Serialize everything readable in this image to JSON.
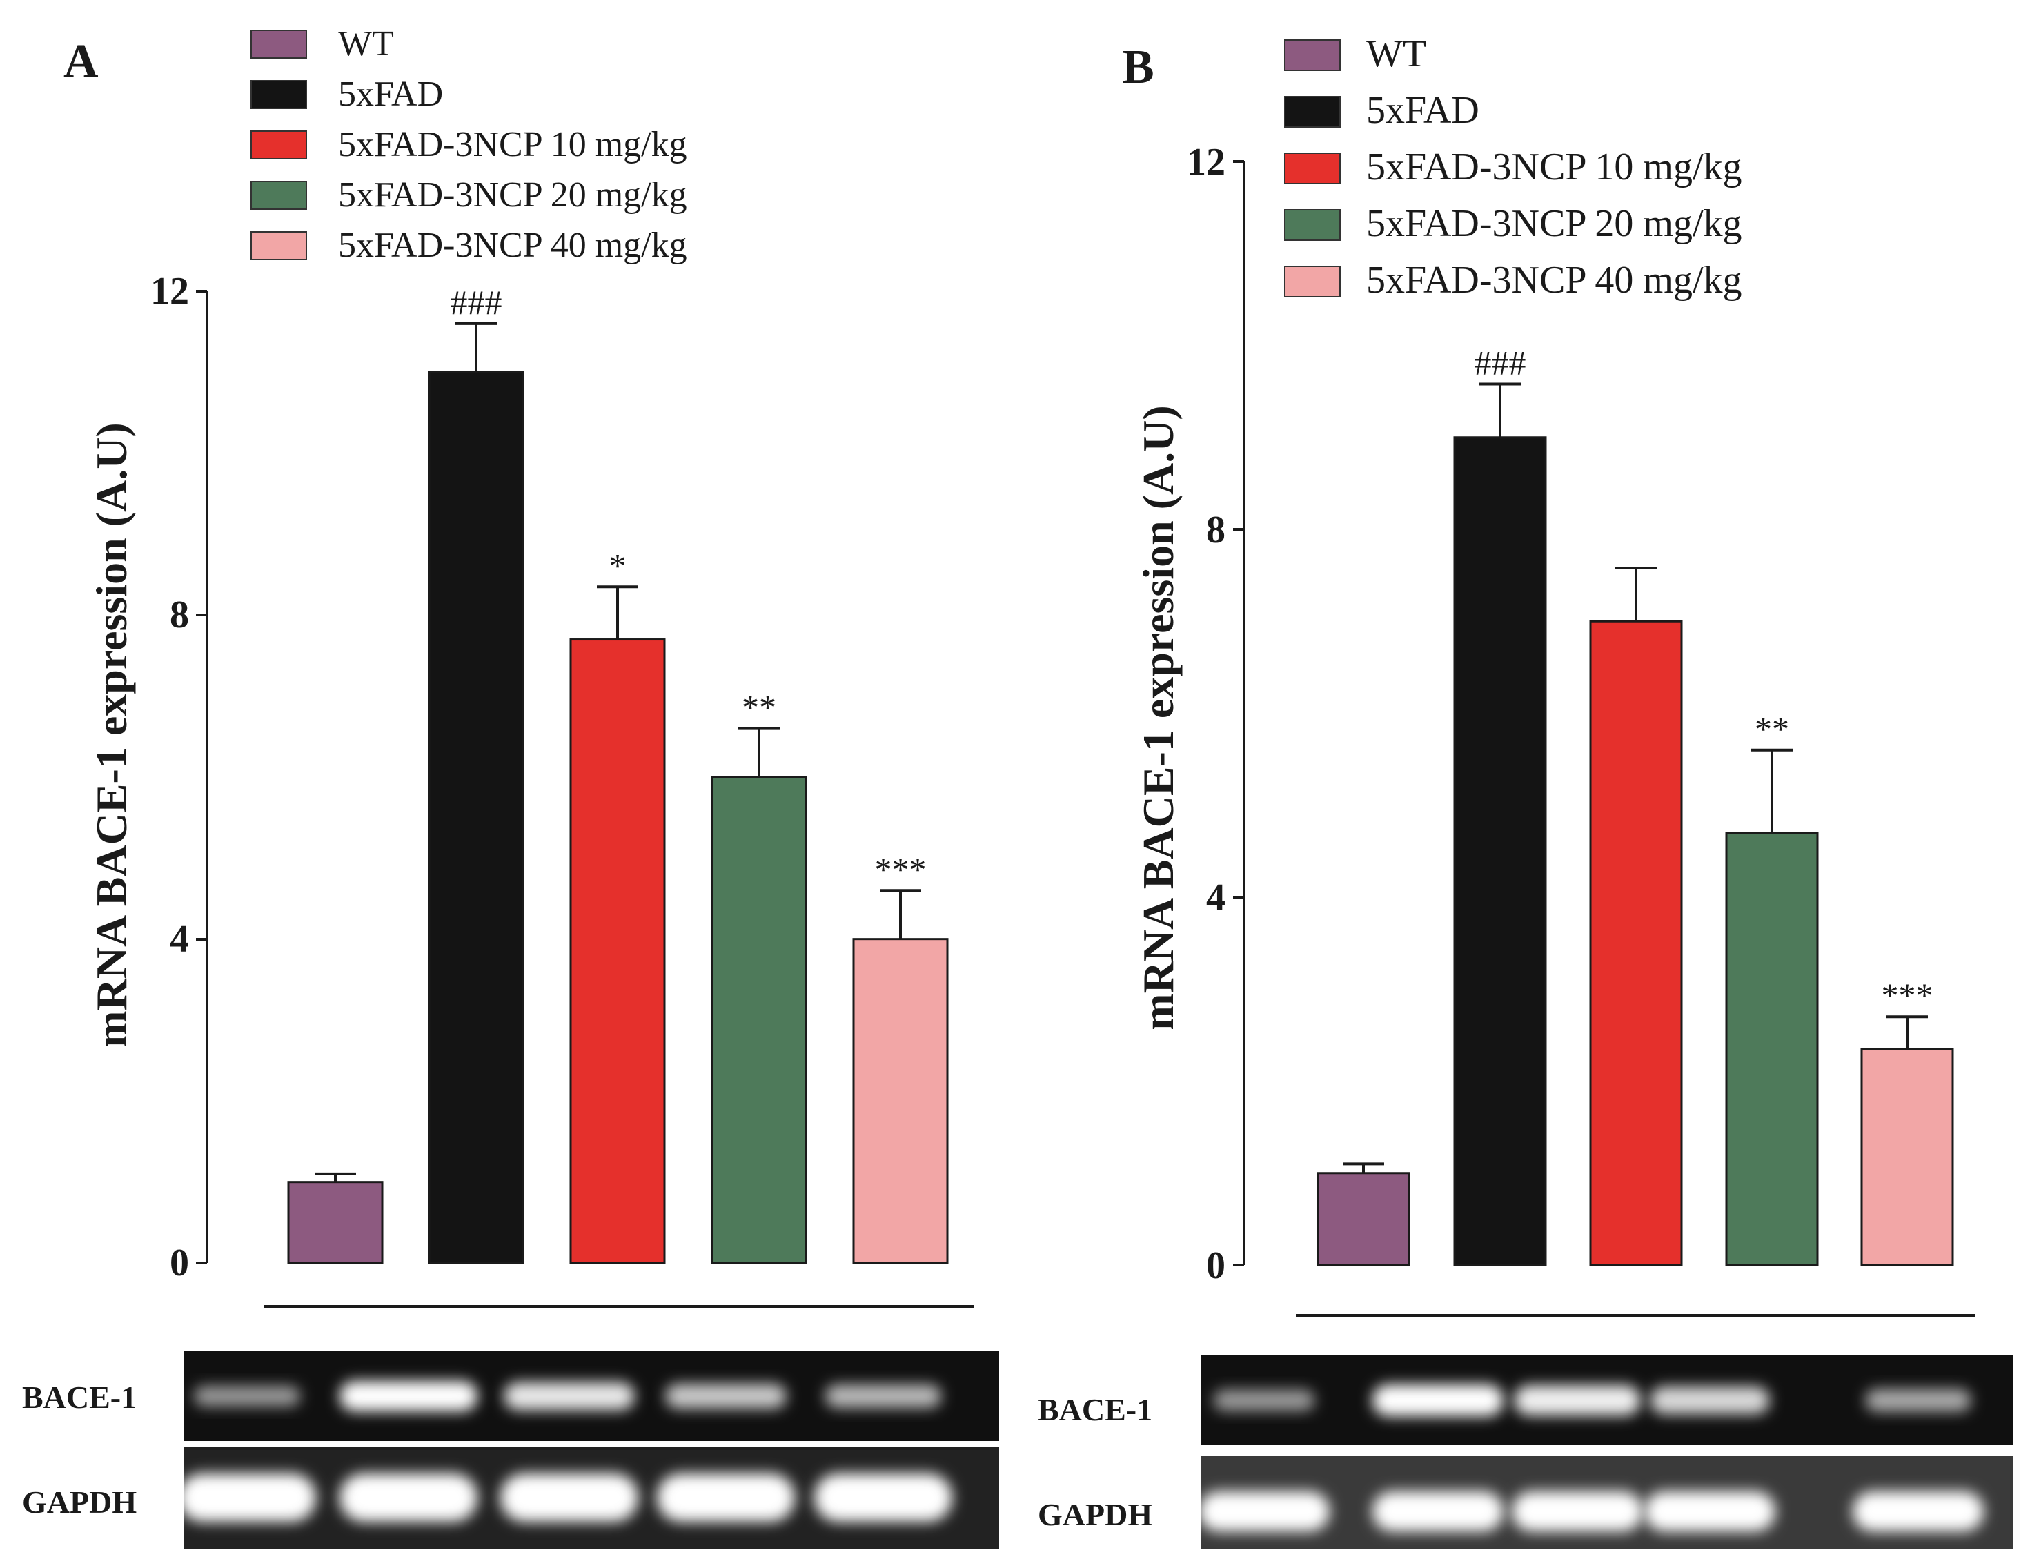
{
  "colors": {
    "wt": "#8d5a80",
    "fad": "#141414",
    "ncp10": "#e5302c",
    "ncp20": "#4e7a5a",
    "ncp40": "#f2a6a6",
    "axis": "#1a1a1a"
  },
  "panels": [
    {
      "label": "A",
      "legend": [
        "WT",
        "5xFAD",
        "5xFAD-3NCP 10 mg/kg",
        "5xFAD-3NCP 20 mg/kg",
        "5xFAD-3NCP 40 mg/kg"
      ],
      "ylabel": "mRNA BACE-1 expression (A.U)",
      "gel": {
        "row1": "BACE-1",
        "row2": "GAPDH",
        "bace_intensity": [
          0.35,
          1.0,
          0.85,
          0.65,
          0.55
        ],
        "gapdh_intensity": [
          1.0,
          1.0,
          1.0,
          1.0,
          1.0
        ]
      }
    },
    {
      "label": "B",
      "legend": [
        "WT",
        "5xFAD",
        "5xFAD-3NCP 10 mg/kg",
        "5xFAD-3NCP 20 mg/kg",
        "5xFAD-3NCP 40 mg/kg"
      ],
      "ylabel": "mRNA BACE-1 expression (A.U)",
      "gel": {
        "row1": "BACE-1",
        "row2": "GAPDH",
        "bace_intensity": [
          0.35,
          1.0,
          0.9,
          0.75,
          0.45
        ],
        "gapdh_intensity": [
          1.0,
          1.0,
          1.0,
          1.0,
          1.0
        ]
      }
    }
  ],
  "chart_data": [
    {
      "type": "bar",
      "panel": "A",
      "categories": [
        "WT",
        "5xFAD",
        "5xFAD-3NCP 10 mg/kg",
        "5xFAD-3NCP 20 mg/kg",
        "5xFAD-3NCP 40 mg/kg"
      ],
      "values": [
        1.0,
        11.0,
        7.7,
        6.0,
        4.0
      ],
      "errors": [
        0.1,
        0.6,
        0.65,
        0.6,
        0.6
      ],
      "significance": [
        "",
        "###",
        "*",
        "**",
        "***"
      ],
      "ylabel": "mRNA BACE-1 expression (A.U)",
      "ylim": [
        0,
        12
      ],
      "yticks": [
        "0",
        "4",
        "8",
        "12"
      ],
      "ytick_values": [
        0,
        4,
        8,
        12
      ]
    },
    {
      "type": "bar",
      "panel": "B",
      "categories": [
        "WT",
        "5xFAD",
        "5xFAD-3NCP 10 mg/kg",
        "5xFAD-3NCP 20 mg/kg",
        "5xFAD-3NCP 40 mg/kg"
      ],
      "values": [
        1.0,
        9.0,
        7.0,
        4.7,
        2.35
      ],
      "errors": [
        0.1,
        0.58,
        0.58,
        0.9,
        0.35
      ],
      "significance": [
        "",
        "###",
        "",
        "**",
        "***"
      ],
      "ylabel": "mRNA BACE-1 expression (A.U)",
      "ylim": [
        0,
        12
      ],
      "yticks": [
        "0",
        "4",
        "8",
        "12"
      ],
      "ytick_values": [
        0,
        4,
        8,
        12
      ]
    }
  ]
}
